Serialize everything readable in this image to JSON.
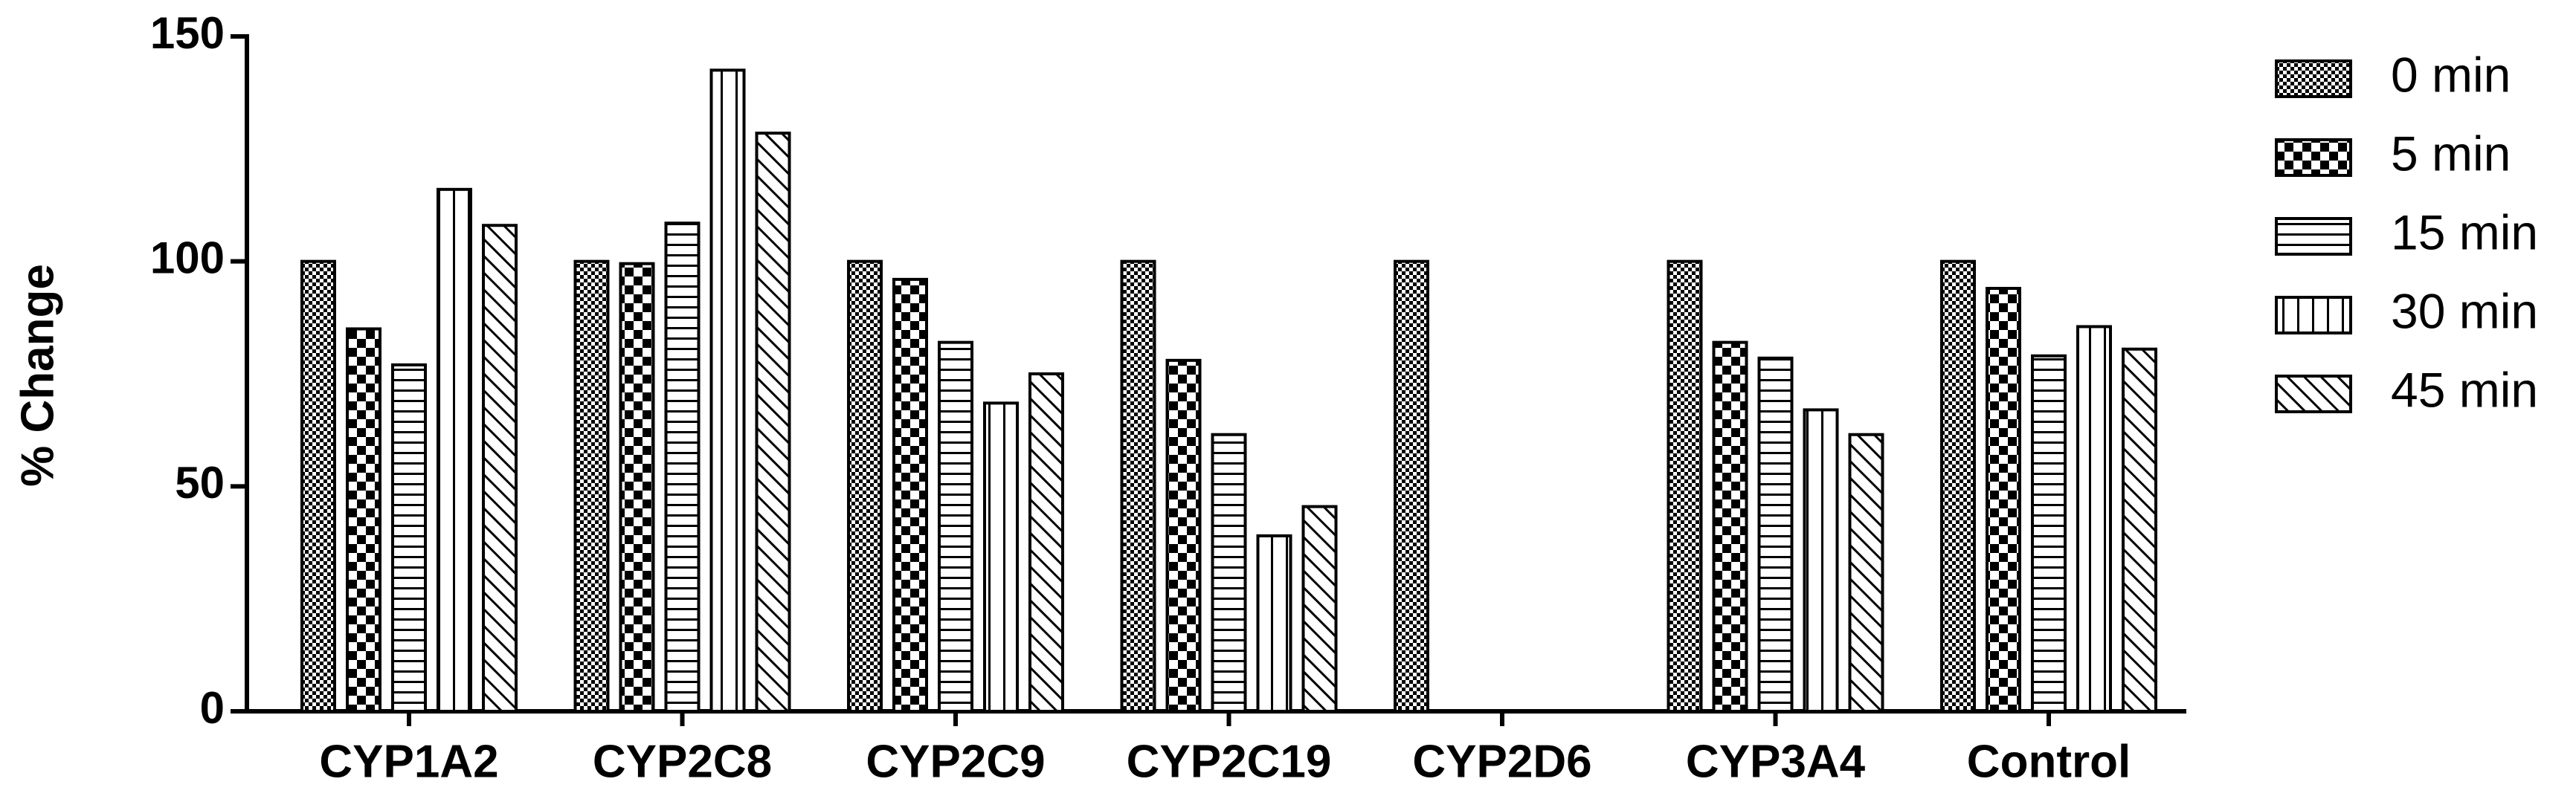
{
  "chart_data": {
    "type": "bar",
    "y_label": "% Change",
    "categories": [
      "CYP1A2",
      "CYP2C8",
      "CYP2C9",
      "CYP2C19",
      "CYP2D6",
      "CYP3A4",
      "Control"
    ],
    "series": [
      {
        "name": "0 min",
        "color": "#000000",
        "pattern": "fine-checker",
        "values": [
          100,
          100,
          100,
          100,
          100,
          100,
          100
        ]
      },
      {
        "name": "5 min",
        "color": "#000000",
        "pattern": "checker",
        "values": [
          85,
          99.5,
          96,
          78,
          null,
          82,
          94
        ]
      },
      {
        "name": "15 min",
        "color": "#000000",
        "pattern": "horizontal",
        "values": [
          77,
          108.5,
          82,
          61.5,
          null,
          78.5,
          79
        ]
      },
      {
        "name": "30 min",
        "color": "#000000",
        "pattern": "vertical",
        "values": [
          116,
          142.5,
          68.5,
          39,
          null,
          67,
          85.5
        ]
      },
      {
        "name": "45 min",
        "color": "#000000",
        "pattern": "diagonal",
        "values": [
          108,
          128.5,
          75,
          45.5,
          null,
          61.5,
          80.5
        ]
      }
    ],
    "ylim": [
      0,
      150
    ],
    "yticks": [
      0,
      50,
      100,
      150
    ],
    "grid": false,
    "legend": "right"
  }
}
